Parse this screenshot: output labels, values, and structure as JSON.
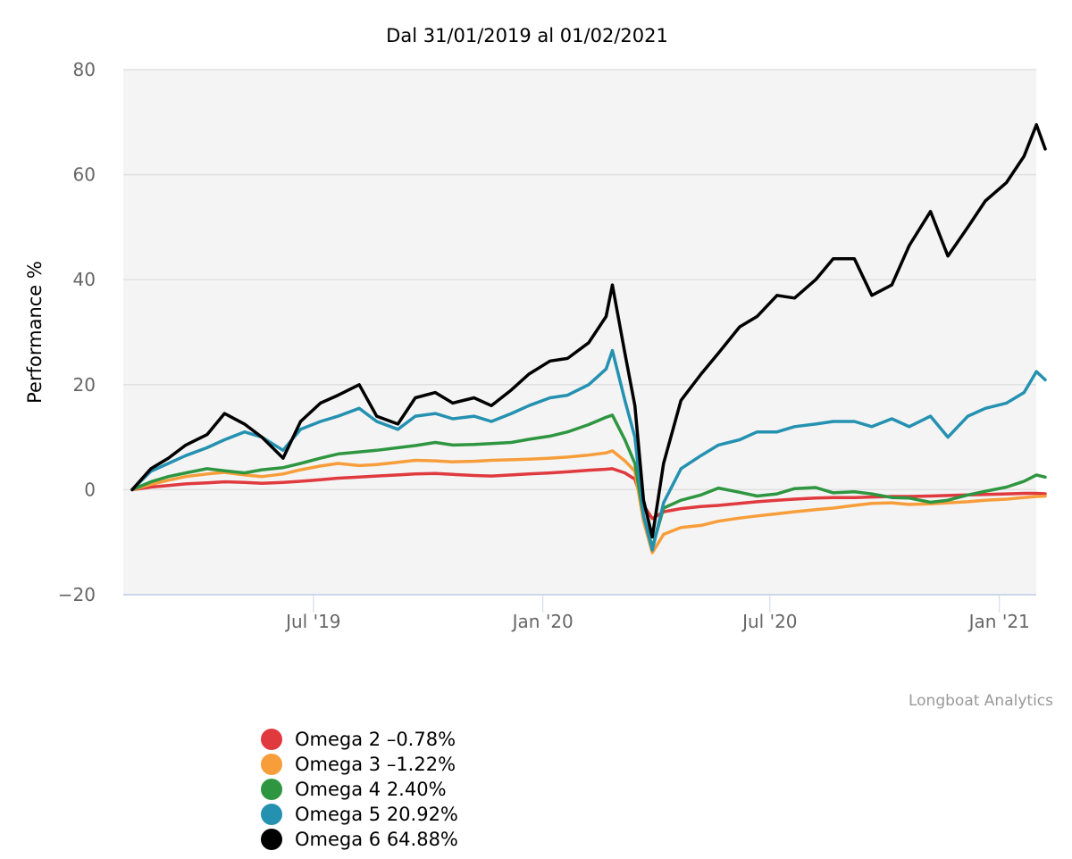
{
  "chart_data": {
    "type": "line",
    "title": "Dal 31/01/2019 al 01/02/2021",
    "xlabel": "",
    "ylabel": "Performance %",
    "ylim": [
      -20,
      80
    ],
    "yticks": [
      -20,
      0,
      20,
      40,
      60,
      80
    ],
    "x_range": [
      "2019-01-31",
      "2021-02-01"
    ],
    "xticks": [
      {
        "date": "2019-07-01",
        "label": "Jul '19"
      },
      {
        "date": "2020-01-01",
        "label": "Jan '20"
      },
      {
        "date": "2020-07-01",
        "label": "Jul '20"
      },
      {
        "date": "2021-01-01",
        "label": "Jan '21"
      }
    ],
    "grid": true,
    "legend_position": "bottom-left",
    "credit": "Longboat Analytics",
    "x": [
      "2019-01-31",
      "2019-02-15",
      "2019-03-01",
      "2019-03-15",
      "2019-04-01",
      "2019-04-15",
      "2019-05-01",
      "2019-05-15",
      "2019-06-01",
      "2019-06-15",
      "2019-07-01",
      "2019-07-15",
      "2019-08-01",
      "2019-08-15",
      "2019-09-01",
      "2019-09-15",
      "2019-10-01",
      "2019-10-15",
      "2019-11-01",
      "2019-11-15",
      "2019-12-01",
      "2019-12-15",
      "2020-01-01",
      "2020-01-15",
      "2020-02-01",
      "2020-02-15",
      "2020-02-20",
      "2020-03-01",
      "2020-03-09",
      "2020-03-16",
      "2020-03-23",
      "2020-04-01",
      "2020-04-15",
      "2020-05-01",
      "2020-05-15",
      "2020-06-01",
      "2020-06-15",
      "2020-07-01",
      "2020-07-15",
      "2020-08-01",
      "2020-08-15",
      "2020-09-01",
      "2020-09-15",
      "2020-10-01",
      "2020-10-15",
      "2020-11-01",
      "2020-11-15",
      "2020-12-01",
      "2020-12-15",
      "2021-01-01",
      "2021-01-15",
      "2021-01-25",
      "2021-02-01"
    ],
    "series": [
      {
        "name": "Omega 2",
        "color": "#e0393e",
        "final_label": "-0.78%",
        "values": [
          0,
          0.5,
          0.8,
          1.1,
          1.3,
          1.5,
          1.4,
          1.2,
          1.4,
          1.6,
          1.9,
          2.2,
          2.4,
          2.6,
          2.8,
          3.0,
          3.1,
          2.9,
          2.7,
          2.6,
          2.8,
          3.0,
          3.2,
          3.4,
          3.7,
          3.9,
          4.0,
          3.2,
          2.0,
          -3.0,
          -5.5,
          -4.2,
          -3.6,
          -3.2,
          -3.0,
          -2.6,
          -2.3,
          -2.0,
          -1.8,
          -1.6,
          -1.5,
          -1.5,
          -1.4,
          -1.3,
          -1.3,
          -1.2,
          -1.1,
          -1.0,
          -0.9,
          -0.8,
          -0.7,
          -0.7,
          -0.78
        ]
      },
      {
        "name": "Omega 3",
        "color": "#f79d3a",
        "final_label": "-1.22%",
        "values": [
          0,
          1.0,
          1.8,
          2.5,
          3.0,
          3.3,
          2.8,
          2.5,
          3.0,
          3.8,
          4.5,
          5.0,
          4.6,
          4.8,
          5.2,
          5.6,
          5.5,
          5.3,
          5.4,
          5.6,
          5.7,
          5.8,
          6.0,
          6.2,
          6.6,
          7.0,
          7.4,
          5.5,
          3.5,
          -6.0,
          -12.0,
          -8.5,
          -7.2,
          -6.8,
          -6.0,
          -5.4,
          -5.0,
          -4.6,
          -4.2,
          -3.8,
          -3.5,
          -3.0,
          -2.6,
          -2.5,
          -2.8,
          -2.7,
          -2.5,
          -2.3,
          -2.0,
          -1.8,
          -1.5,
          -1.3,
          -1.22
        ]
      },
      {
        "name": "Omega 4",
        "color": "#2e9640",
        "final_label": "2.40%",
        "values": [
          0,
          1.5,
          2.5,
          3.2,
          4.0,
          3.6,
          3.2,
          3.8,
          4.2,
          5.0,
          6.0,
          6.8,
          7.2,
          7.5,
          8.0,
          8.4,
          9.0,
          8.5,
          8.6,
          8.8,
          9.0,
          9.6,
          10.2,
          11.0,
          12.4,
          13.8,
          14.2,
          9.5,
          5.0,
          -5.0,
          -11.0,
          -3.5,
          -2.0,
          -1.0,
          0.3,
          -0.5,
          -1.2,
          -0.8,
          0.2,
          0.4,
          -0.6,
          -0.4,
          -0.8,
          -1.5,
          -1.6,
          -2.4,
          -2.0,
          -1.0,
          -0.3,
          0.5,
          1.6,
          2.8,
          2.4
        ]
      },
      {
        "name": "Omega 5",
        "color": "#2591b1",
        "final_label": "20.92%",
        "values": [
          0,
          3.5,
          5.0,
          6.5,
          8.0,
          9.5,
          11.0,
          10.0,
          7.5,
          11.5,
          13.0,
          14.0,
          15.5,
          13.0,
          11.5,
          14.0,
          14.5,
          13.5,
          14.0,
          13.0,
          14.5,
          16.0,
          17.5,
          18.0,
          20.0,
          23.0,
          26.5,
          17.0,
          10.0,
          -5.0,
          -11.5,
          -2.5,
          4.0,
          6.5,
          8.5,
          9.5,
          11.0,
          11.0,
          12.0,
          12.5,
          13.0,
          13.0,
          12.0,
          13.5,
          12.0,
          14.0,
          10.0,
          14.0,
          15.5,
          16.5,
          18.5,
          22.5,
          20.92
        ]
      },
      {
        "name": "Omega 6",
        "color": "#000000",
        "final_label": "64.88%",
        "values": [
          0,
          4.0,
          6.0,
          8.5,
          10.5,
          14.5,
          12.5,
          10.0,
          6.0,
          13.0,
          16.5,
          18.0,
          20.0,
          14.0,
          12.5,
          17.5,
          18.5,
          16.5,
          17.5,
          16.0,
          19.0,
          22.0,
          24.5,
          25.0,
          28.0,
          33.0,
          39.0,
          26.0,
          16.0,
          -2.0,
          -9.0,
          5.0,
          17.0,
          22.0,
          26.0,
          31.0,
          33.0,
          37.0,
          36.5,
          40.0,
          44.0,
          44.0,
          37.0,
          39.0,
          46.5,
          53.0,
          44.5,
          50.0,
          55.0,
          58.5,
          63.5,
          69.5,
          64.88
        ]
      }
    ]
  },
  "legend": [
    {
      "label": "Omega 2 –0.78%",
      "color": "#e0393e"
    },
    {
      "label": "Omega 3 –1.22%",
      "color": "#f79d3a"
    },
    {
      "label": "Omega 4 2.40%",
      "color": "#2e9640"
    },
    {
      "label": "Omega 5 20.92%",
      "color": "#2591b1"
    },
    {
      "label": "Omega 6 64.88%",
      "color": "#000000"
    }
  ]
}
